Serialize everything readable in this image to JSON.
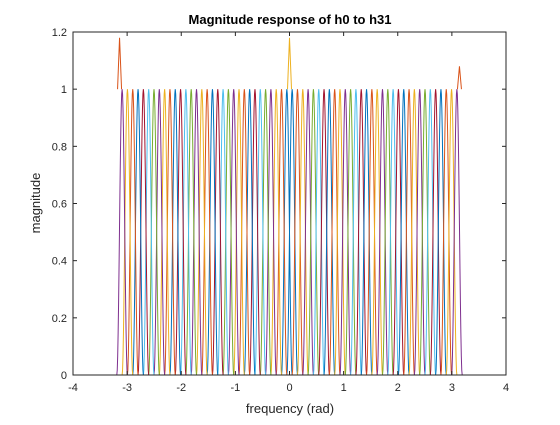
{
  "chart_data": {
    "type": "line",
    "title": "Magnitude response of h0 to h31",
    "xlabel": "frequency (rad)",
    "ylabel": "magnitude",
    "xlim": [
      -4,
      4
    ],
    "ylim": [
      0,
      1.2
    ],
    "xticks": [
      "-4",
      "-3",
      "-2",
      "-1",
      "0",
      "1",
      "2",
      "3",
      "4"
    ],
    "yticks": [
      "0",
      "0.2",
      "0.4",
      "0.6",
      "0.8",
      "1",
      "1.2"
    ],
    "grid": false,
    "legend": "none",
    "series_count": 32,
    "frequency_range": [
      -3.1416,
      3.1416
    ],
    "passband_magnitude": 1.0,
    "edge_peaks": [
      {
        "x": -3.14,
        "y": 1.18
      },
      {
        "x": 0.0,
        "y": 1.18
      },
      {
        "x": 3.14,
        "y": 1.08
      }
    ],
    "colors": [
      "#0072BD",
      "#D95319",
      "#EDB120",
      "#7E2F8E",
      "#77AC30",
      "#4DBEEE",
      "#A2142F"
    ]
  }
}
